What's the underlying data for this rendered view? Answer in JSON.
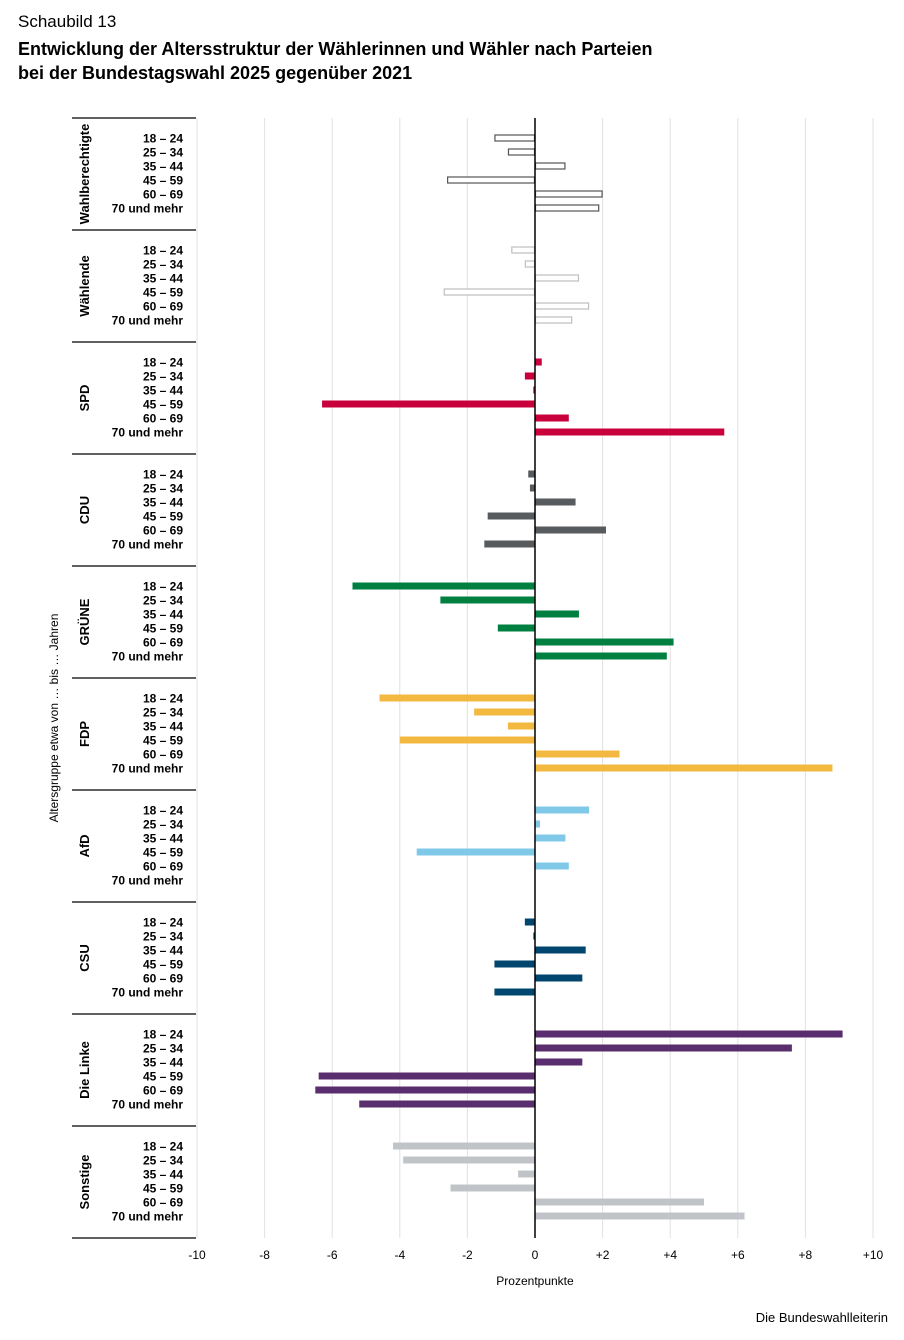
{
  "header": {
    "label": "Schaubild 13",
    "title_line1": "Entwicklung der Altersstruktur der Wählerinnen und Wähler nach Parteien",
    "title_line2": "bei der Bundestagswahl 2025 gegenüber 2021"
  },
  "credit": "Die Bundeswahlleiterin",
  "chart_data": {
    "type": "bar",
    "orientation": "horizontal",
    "xlabel": "Prozentpunkte",
    "ylabel": "Altersgruppe etwa von … bis … Jahren",
    "xlim": [
      -10,
      10
    ],
    "xticks": [
      "-10",
      "-8",
      "-6",
      "-4",
      "-2",
      "0",
      "+2",
      "+4",
      "+6",
      "+8",
      "+10"
    ],
    "grid": true,
    "categories": [
      "18 – 24",
      "25 – 34",
      "35 – 44",
      "45 – 59",
      "60 – 69",
      "70 und mehr"
    ],
    "groups": [
      {
        "name": "Wahlberechtigte",
        "style": "outline",
        "color": "#555555",
        "values": [
          -1.2,
          -0.8,
          0.9,
          -2.6,
          2.0,
          1.9
        ]
      },
      {
        "name": "Wählende",
        "style": "outline",
        "color": "#bfbfbf",
        "values": [
          -0.7,
          -0.3,
          1.3,
          -2.7,
          1.6,
          1.1
        ]
      },
      {
        "name": "SPD",
        "style": "filled",
        "color": "#c8003c",
        "values": [
          0.2,
          -0.3,
          -0.05,
          -6.3,
          1.0,
          5.6
        ]
      },
      {
        "name": "CDU",
        "style": "filled",
        "color": "#575b5e",
        "values": [
          -0.2,
          -0.15,
          1.2,
          -1.4,
          2.1,
          -1.5
        ]
      },
      {
        "name": "GRÜNE",
        "style": "filled",
        "color": "#008040",
        "values": [
          -5.4,
          -2.8,
          1.3,
          -1.1,
          4.1,
          3.9
        ]
      },
      {
        "name": "FDP",
        "style": "filled",
        "color": "#f2b840",
        "values": [
          -4.6,
          -1.8,
          -0.8,
          -4.0,
          2.5,
          8.8
        ]
      },
      {
        "name": "AfD",
        "style": "filled",
        "color": "#80c8e8",
        "values": [
          1.6,
          0.15,
          0.9,
          -3.5,
          1.0,
          0.0
        ]
      },
      {
        "name": "CSU",
        "style": "filled",
        "color": "#00466e",
        "values": [
          -0.3,
          -0.05,
          1.5,
          -1.2,
          1.4,
          -1.2
        ]
      },
      {
        "name": "Die Linke",
        "style": "filled",
        "color": "#5a2d6e",
        "values": [
          9.1,
          7.6,
          1.4,
          -6.4,
          -6.5,
          -5.2
        ]
      },
      {
        "name": "Sonstige",
        "style": "filled",
        "color": "#c0c4c8",
        "values": [
          -4.2,
          -3.9,
          -0.5,
          -2.5,
          5.0,
          6.2
        ]
      }
    ]
  }
}
